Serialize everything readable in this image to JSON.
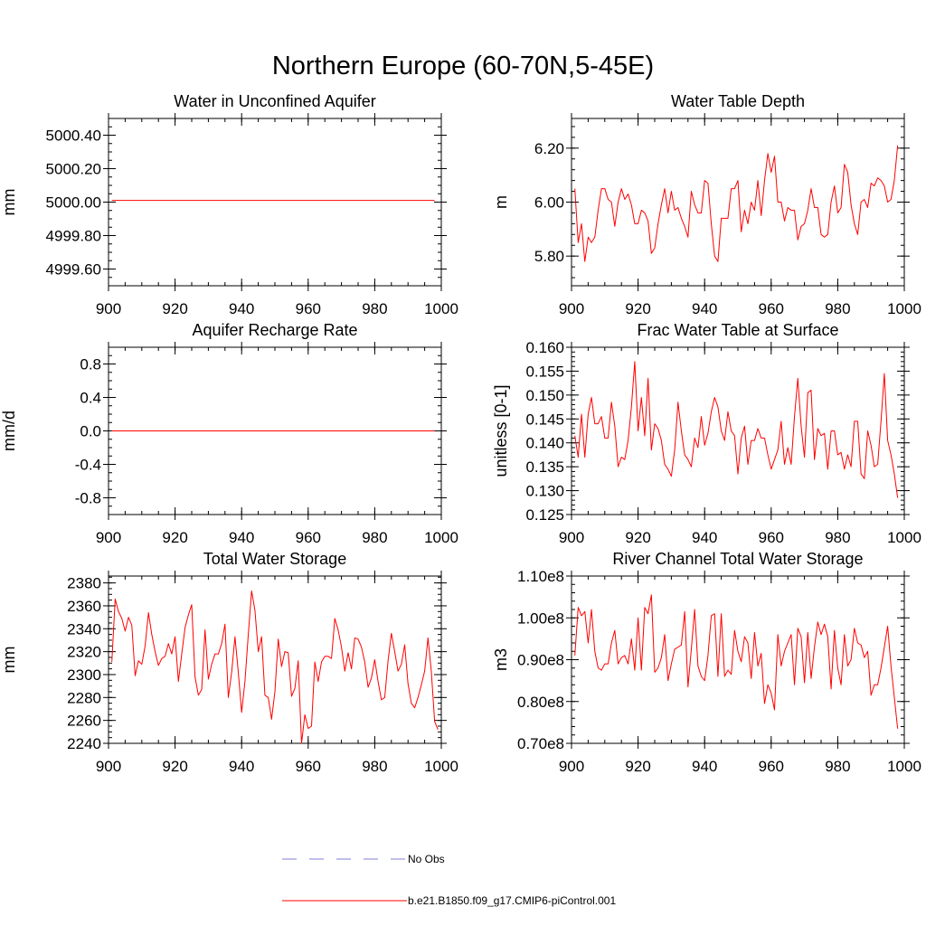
{
  "figure": {
    "title": "Northern Europe (60-70N,5-45E)"
  },
  "colors": {
    "model_line": "#ff0000",
    "obs_line": "#7f7fd9",
    "axis": "#000000"
  },
  "legend": {
    "items": [
      {
        "label": "No Obs",
        "style": "dashed",
        "color": "#7f7fd9"
      },
      {
        "label": "b.e21.B1850.f09_g17.CMIP6-piControl.001",
        "style": "solid",
        "color": "#ff0000"
      }
    ]
  },
  "chart_data": [
    {
      "type": "line",
      "title": "Water in Unconfined Aquifer",
      "xlabel": "",
      "ylabel": "mm",
      "xlim": [
        900,
        1000
      ],
      "ylim": [
        4999.5,
        5000.5
      ],
      "xticks": [
        900,
        920,
        940,
        960,
        980,
        1000
      ],
      "xticklabels": [
        "900",
        "920",
        "940",
        "960",
        "980",
        "1000"
      ],
      "yticks": [
        4999.6,
        4999.8,
        5000.0,
        5000.2,
        5000.4
      ],
      "yticklabels": [
        "4999.60",
        "4999.80",
        "5000.00",
        "5000.20",
        "5000.40"
      ],
      "yminor": 0.05,
      "series": [
        {
          "name": "b.e21.B1850.f09_g17.CMIP6-piControl.001",
          "x_start": 901,
          "x_step": 1,
          "values": [
            5000.01,
            5000.01,
            5000.01,
            5000.01,
            5000.01,
            5000.01,
            5000.01,
            5000.01,
            5000.01,
            5000.01,
            5000.01,
            5000.01,
            5000.01,
            5000.01,
            5000.01,
            5000.01,
            5000.01,
            5000.01,
            5000.01,
            5000.01,
            5000.01,
            5000.01,
            5000.01,
            5000.01,
            5000.01,
            5000.01,
            5000.01,
            5000.01,
            5000.01,
            5000.01,
            5000.01,
            5000.01,
            5000.01,
            5000.01,
            5000.01,
            5000.01,
            5000.01,
            5000.01,
            5000.01,
            5000.01,
            5000.01,
            5000.01,
            5000.01,
            5000.01,
            5000.01,
            5000.01,
            5000.01,
            5000.01,
            5000.01,
            5000.01,
            5000.01,
            5000.01,
            5000.01,
            5000.01,
            5000.01,
            5000.01,
            5000.01,
            5000.01,
            5000.01,
            5000.01,
            5000.01,
            5000.01,
            5000.01,
            5000.01,
            5000.01,
            5000.01,
            5000.01,
            5000.01,
            5000.01,
            5000.01,
            5000.01,
            5000.01,
            5000.01,
            5000.01,
            5000.01,
            5000.01,
            5000.01,
            5000.01,
            5000.01,
            5000.01,
            5000.01,
            5000.01,
            5000.01,
            5000.01,
            5000.01,
            5000.01,
            5000.01,
            5000.01,
            5000.01,
            5000.01,
            5000.01,
            5000.01,
            5000.01,
            5000.01,
            5000.01,
            5000.01,
            5000.01,
            5000.01
          ]
        }
      ]
    },
    {
      "type": "line",
      "title": "Water Table Depth",
      "xlabel": "",
      "ylabel": "m",
      "xlim": [
        900,
        1000
      ],
      "ylim": [
        5.69,
        6.31
      ],
      "xticks": [
        900,
        920,
        940,
        960,
        980,
        1000
      ],
      "xticklabels": [
        "900",
        "920",
        "940",
        "960",
        "980",
        "1000"
      ],
      "yticks": [
        5.8,
        6.0,
        6.2
      ],
      "yticklabels": [
        "5.80",
        "6.00",
        "6.20"
      ],
      "yminor": 0.04,
      "series": [
        {
          "name": "b.e21.B1850.f09_g17.CMIP6-piControl.001",
          "x_start": 901,
          "x_step": 1,
          "values": [
            6.05,
            5.85,
            5.92,
            5.78,
            5.87,
            5.85,
            5.87,
            5.97,
            6.05,
            6.05,
            6.01,
            6.0,
            5.91,
            6.0,
            6.05,
            6.01,
            6.03,
            5.99,
            5.92,
            5.92,
            5.97,
            5.96,
            5.93,
            5.81,
            5.83,
            5.92,
            5.99,
            6.05,
            5.96,
            6.04,
            5.97,
            5.98,
            5.94,
            5.91,
            5.87,
            6.04,
            5.99,
            5.96,
            5.96,
            6.08,
            6.07,
            5.92,
            5.8,
            5.78,
            5.94,
            5.94,
            5.94,
            6.05,
            6.05,
            6.08,
            5.89,
            5.97,
            5.92,
            6.0,
            5.97,
            6.08,
            5.95,
            6.08,
            6.18,
            6.11,
            6.17,
            6.0,
            6.0,
            5.93,
            5.98,
            5.97,
            5.97,
            5.86,
            5.91,
            5.92,
            5.97,
            6.05,
            5.98,
            5.98,
            5.88,
            5.87,
            5.88,
            6.0,
            6.06,
            5.96,
            5.98,
            6.14,
            6.11,
            5.99,
            5.92,
            5.88,
            6.0,
            6.01,
            5.98,
            6.07,
            6.06,
            6.09,
            6.08,
            6.06,
            6.0,
            6.01,
            6.08,
            6.21
          ]
        }
      ]
    },
    {
      "type": "line",
      "title": "Aquifer Recharge Rate",
      "xlabel": "",
      "ylabel": "mm/d",
      "xlim": [
        900,
        1000
      ],
      "ylim": [
        -1.0,
        1.0
      ],
      "xticks": [
        900,
        920,
        940,
        960,
        980,
        1000
      ],
      "xticklabels": [
        "900",
        "920",
        "940",
        "960",
        "980",
        "1000"
      ],
      "yticks": [
        -0.8,
        -0.4,
        0.0,
        0.4,
        0.8
      ],
      "yticklabels": [
        "-0.8",
        "-0.4",
        "0.0",
        "0.4",
        "0.8"
      ],
      "yminor": 0.1,
      "series": [
        {
          "name": "b.e21.B1850.f09_g17.CMIP6-piControl.001",
          "x_start": 901,
          "x_step": 1,
          "values": [
            0.0,
            0.0,
            0.0,
            0.0,
            0.0,
            0.0,
            0.0,
            0.0,
            0.0,
            0.0,
            0.0,
            0.0,
            0.0,
            0.0,
            0.0,
            0.0,
            0.0,
            0.0,
            0.0,
            0.0,
            0.0,
            0.0,
            0.0,
            0.0,
            0.0,
            0.0,
            0.0,
            0.0,
            0.0,
            0.0,
            0.0,
            0.0,
            0.0,
            0.0,
            0.0,
            0.0,
            0.0,
            0.0,
            0.0,
            0.0,
            0.0,
            0.0,
            0.0,
            0.0,
            0.0,
            0.0,
            0.0,
            0.0,
            0.0,
            0.0,
            0.0,
            0.0,
            0.0,
            0.0,
            0.0,
            0.0,
            0.0,
            0.0,
            0.0,
            0.0,
            0.0,
            0.0,
            0.0,
            0.0,
            0.0,
            0.0,
            0.0,
            0.0,
            0.0,
            0.0,
            0.0,
            0.0,
            0.0,
            0.0,
            0.0,
            0.0,
            0.0,
            0.0,
            0.0,
            0.0,
            0.0,
            0.0,
            0.0,
            0.0,
            0.0,
            0.0,
            0.0,
            0.0,
            0.0,
            0.0,
            0.0,
            0.0,
            0.0,
            0.0,
            0.0,
            0.0,
            0.0,
            0.0
          ]
        }
      ]
    },
    {
      "type": "line",
      "title": "Frac Water Table at Surface",
      "xlabel": "",
      "ylabel": "unitless [0-1]",
      "xlim": [
        900,
        1000
      ],
      "ylim": [
        0.125,
        0.16
      ],
      "xticks": [
        900,
        920,
        940,
        960,
        980,
        1000
      ],
      "xticklabels": [
        "900",
        "920",
        "940",
        "960",
        "980",
        "1000"
      ],
      "yticks": [
        0.125,
        0.13,
        0.135,
        0.14,
        0.145,
        0.15,
        0.155,
        0.16
      ],
      "yticklabels": [
        "0.125",
        "0.130",
        "0.135",
        "0.140",
        "0.145",
        "0.150",
        "0.155",
        "0.160"
      ],
      "yminor": 0.001,
      "series": [
        {
          "name": "b.e21.B1850.f09_g17.CMIP6-piControl.001",
          "x_start": 901,
          "x_step": 1,
          "values": [
            0.1415,
            0.137,
            0.146,
            0.137,
            0.146,
            0.1495,
            0.144,
            0.144,
            0.1455,
            0.141,
            0.141,
            0.1485,
            0.1435,
            0.135,
            0.137,
            0.1365,
            0.1405,
            0.1475,
            0.157,
            0.1425,
            0.1495,
            0.1415,
            0.1535,
            0.1385,
            0.144,
            0.143,
            0.1405,
            0.1355,
            0.1345,
            0.133,
            0.1385,
            0.1485,
            0.1425,
            0.1375,
            0.1365,
            0.135,
            0.141,
            0.139,
            0.1455,
            0.1395,
            0.142,
            0.1465,
            0.1495,
            0.1475,
            0.1425,
            0.1405,
            0.1465,
            0.1425,
            0.1415,
            0.1335,
            0.141,
            0.1435,
            0.1355,
            0.1405,
            0.1405,
            0.143,
            0.141,
            0.141,
            0.1375,
            0.1345,
            0.1365,
            0.1385,
            0.1445,
            0.1355,
            0.139,
            0.1355,
            0.1455,
            0.1535,
            0.1435,
            0.137,
            0.1505,
            0.151,
            0.1365,
            0.143,
            0.1415,
            0.142,
            0.1345,
            0.1425,
            0.1425,
            0.1375,
            0.138,
            0.1345,
            0.1375,
            0.135,
            0.1445,
            0.1445,
            0.1335,
            0.1325,
            0.1425,
            0.1395,
            0.135,
            0.1355,
            0.1445,
            0.1545,
            0.1405,
            0.1375,
            0.1335,
            0.1285
          ]
        }
      ]
    },
    {
      "type": "line",
      "title": "Total Water Storage",
      "xlabel": "",
      "ylabel": "mm",
      "xlim": [
        900,
        1000
      ],
      "ylim": [
        2240,
        2386
      ],
      "xticks": [
        900,
        920,
        940,
        960,
        980,
        1000
      ],
      "xticklabels": [
        "900",
        "920",
        "940",
        "960",
        "980",
        "1000"
      ],
      "yticks": [
        2240,
        2260,
        2280,
        2300,
        2320,
        2340,
        2360,
        2380
      ],
      "yticklabels": [
        "2240",
        "2260",
        "2280",
        "2300",
        "2320",
        "2340",
        "2360",
        "2380"
      ],
      "yminor": 5,
      "series": [
        {
          "name": "b.e21.B1850.f09_g17.CMIP6-piControl.001",
          "x_start": 901,
          "x_step": 1,
          "values": [
            2311,
            2366,
            2355,
            2349,
            2338,
            2350,
            2343,
            2299,
            2312,
            2309,
            2325,
            2354,
            2335,
            2320,
            2308,
            2314,
            2316,
            2327,
            2318,
            2333,
            2294,
            2318,
            2341,
            2352,
            2361,
            2298,
            2282,
            2287,
            2339,
            2296,
            2309,
            2318,
            2318,
            2327,
            2344,
            2280,
            2302,
            2333,
            2302,
            2267,
            2294,
            2335,
            2373,
            2356,
            2320,
            2333,
            2282,
            2280,
            2261,
            2285,
            2331,
            2307,
            2320,
            2319,
            2281,
            2288,
            2312,
            2240,
            2265,
            2253,
            2255,
            2311,
            2294,
            2311,
            2316,
            2316,
            2314,
            2349,
            2339,
            2324,
            2303,
            2319,
            2305,
            2332,
            2331,
            2324,
            2311,
            2289,
            2297,
            2313,
            2294,
            2278,
            2280,
            2312,
            2336,
            2320,
            2303,
            2309,
            2326,
            2292,
            2275,
            2271,
            2280,
            2291,
            2303,
            2332,
            2303,
            2259,
            2252
          ]
        }
      ]
    },
    {
      "type": "line",
      "title": "River Channel Total Water Storage",
      "xlabel": "",
      "ylabel": "m3",
      "xlim": [
        900,
        1000
      ],
      "ylim": [
        70000000,
        110000000
      ],
      "xticks": [
        900,
        920,
        940,
        960,
        980,
        1000
      ],
      "xticklabels": [
        "900",
        "920",
        "940",
        "960",
        "980",
        "1000"
      ],
      "yticks": [
        70000000,
        80000000,
        90000000,
        100000000,
        110000000
      ],
      "yticklabels": [
        "0.70e8",
        "0.80e8",
        "0.90e8",
        "1.00e8",
        "1.10e8"
      ],
      "yminor": 2000000,
      "series": [
        {
          "name": "b.e21.B1850.f09_g17.CMIP6-piControl.001",
          "x_start": 901,
          "x_step": 1,
          "values": [
            91000000,
            102500000,
            100500000,
            101500000,
            94000000,
            102000000,
            92000000,
            88000000,
            87500000,
            89000000,
            89000000,
            94000000,
            97000000,
            89000000,
            90500000,
            91000000,
            89000000,
            95000000,
            87500000,
            100000000,
            87500000,
            102500000,
            101000000,
            105500000,
            87000000,
            88000000,
            90500000,
            96000000,
            85000000,
            89000000,
            92500000,
            93000000,
            93500000,
            101500000,
            83500000,
            92500000,
            102000000,
            88500000,
            86000000,
            85000000,
            91000000,
            100500000,
            101000000,
            86000000,
            101000000,
            86000000,
            87500000,
            86500000,
            97000000,
            92000000,
            89500000,
            95500000,
            94000000,
            85500000,
            96500000,
            88500000,
            91500000,
            79500000,
            84000000,
            82000000,
            78000000,
            96000000,
            88500000,
            92000000,
            94000000,
            96000000,
            84000000,
            97500000,
            95500000,
            84500000,
            96500000,
            85500000,
            93000000,
            99000000,
            96000000,
            98500000,
            95500000,
            83000000,
            97000000,
            88000000,
            84000000,
            96000000,
            88500000,
            90000000,
            97500000,
            94000000,
            93500000,
            90500000,
            92000000,
            81500000,
            84000000,
            84000000,
            88000000,
            93000000,
            98000000,
            88500000,
            81000000,
            73500000
          ]
        }
      ]
    }
  ]
}
